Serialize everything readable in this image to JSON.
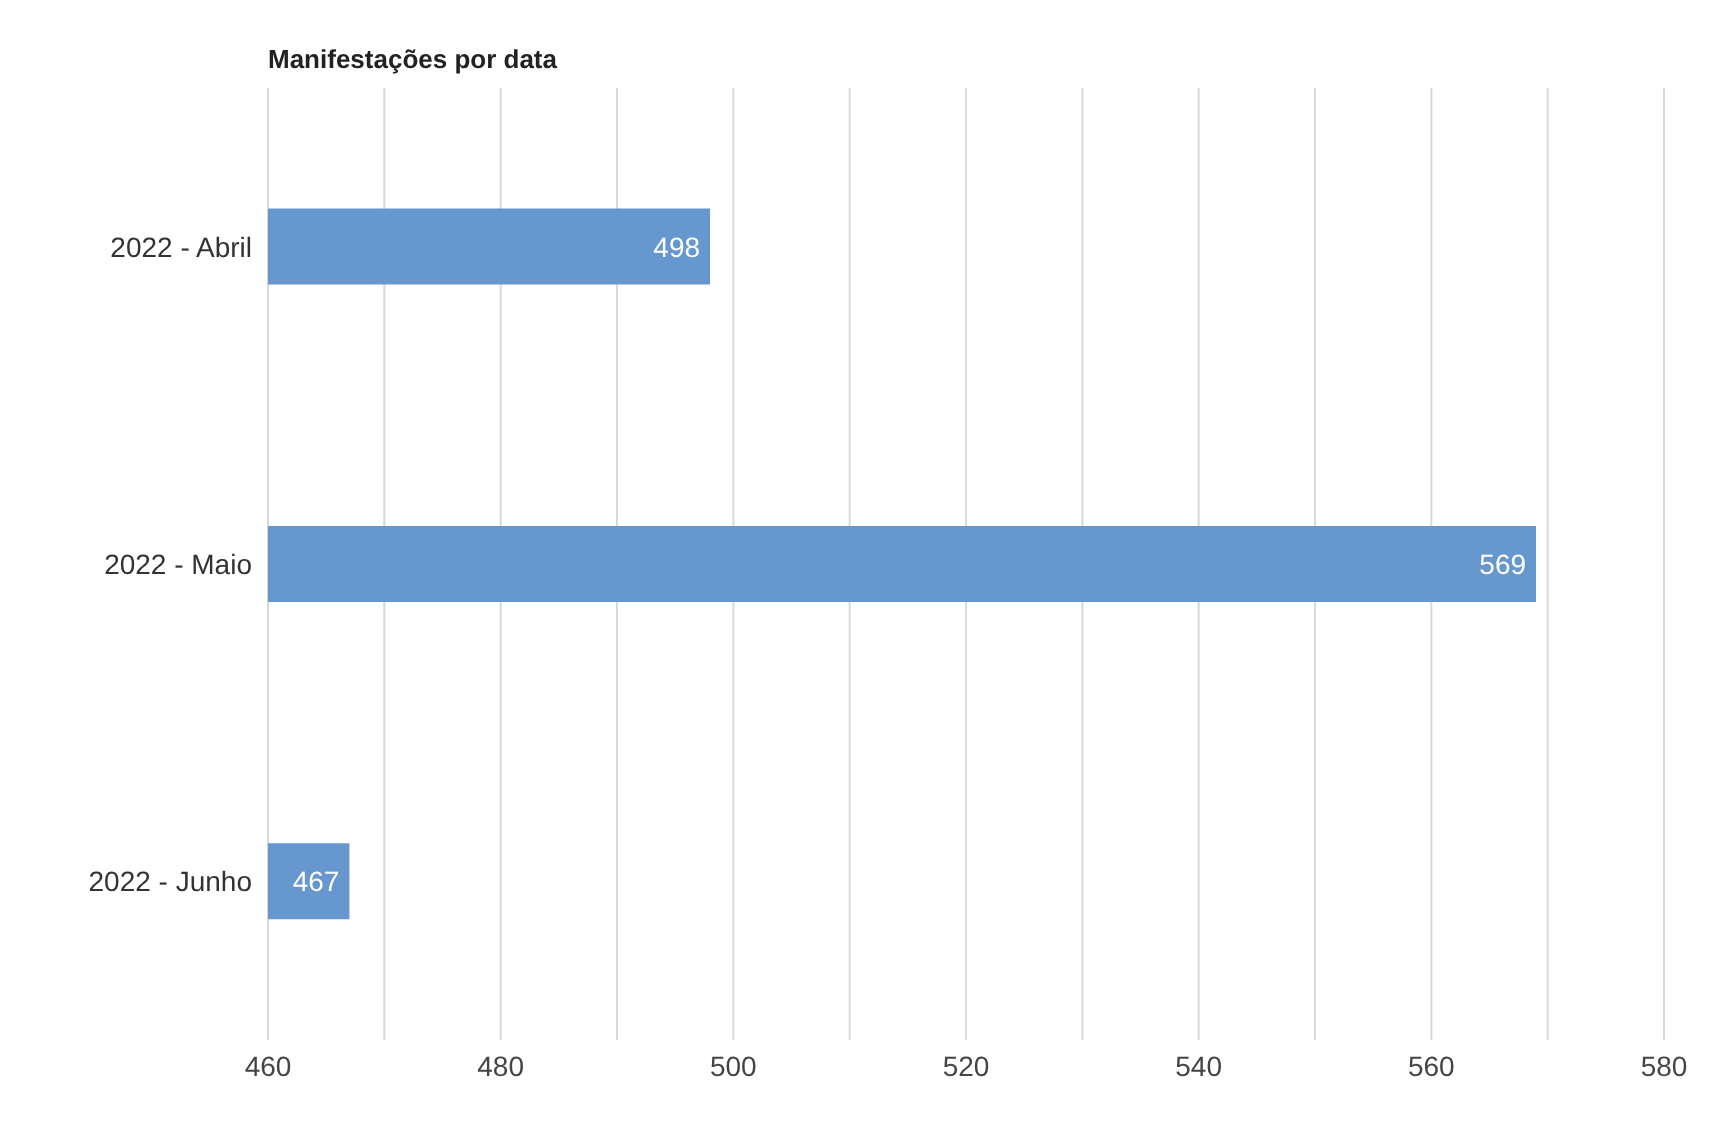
{
  "chart_data": {
    "type": "bar",
    "orientation": "horizontal",
    "title": "Manifestações por data",
    "categories": [
      "2022 - Abril",
      "2022 - Maio",
      "2022 - Junho"
    ],
    "values": [
      498,
      569,
      467
    ],
    "color": "#6698cf",
    "data_labels": true,
    "xlim": [
      460,
      580
    ],
    "xticks": [
      460,
      {
        "value": 470,
        "label": null
      },
      480,
      {
        "value": 490,
        "label": null
      },
      500,
      {
        "value": 510,
        "label": null
      },
      520,
      {
        "value": 530,
        "label": null
      },
      540,
      {
        "value": 550,
        "label": null
      },
      560,
      {
        "value": 570,
        "label": null
      },
      580
    ],
    "grid": "x"
  }
}
